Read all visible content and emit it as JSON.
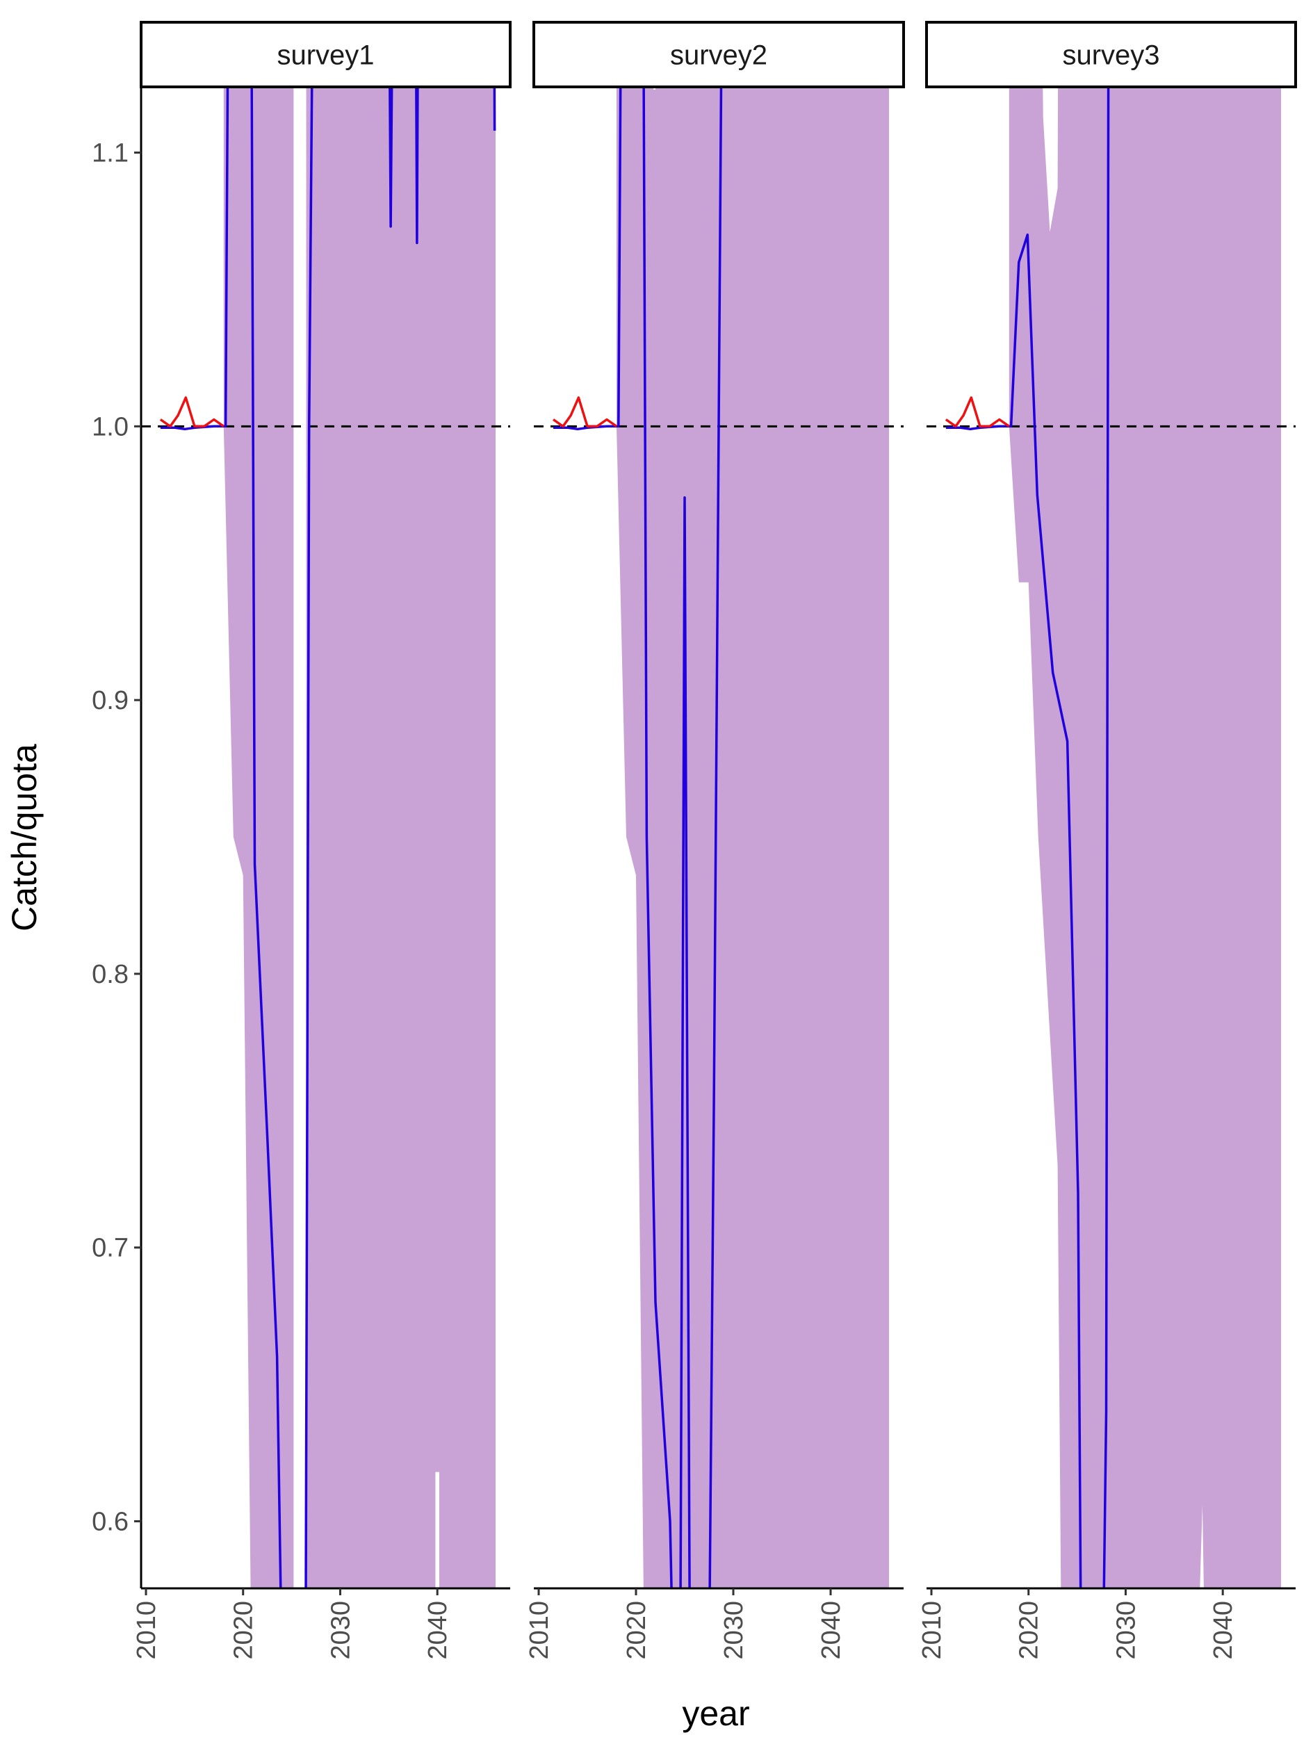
{
  "chart_data": {
    "type": "line",
    "ylabel": "Catch/quota",
    "xlabel": "year",
    "xlim": [
      2009.5,
      2047.5
    ],
    "ylim": [
      0.5755,
      1.1235
    ],
    "x_ticks": [
      2010,
      2020,
      2030,
      2040
    ],
    "y_ticks": [
      0.6,
      0.7,
      0.8,
      0.9,
      1.0,
      1.1
    ],
    "y_tick_labels": [
      "0.6",
      "0.7",
      "0.8",
      "0.9",
      "1.0",
      "1.1"
    ],
    "reference_line": {
      "y": 1.0,
      "style": "dashed",
      "color": "#000000"
    },
    "colors": {
      "ribbon": "#C9A2D6",
      "median": "#1F00DD",
      "observed": "#EE1111"
    },
    "panels": [
      {
        "label": "survey1",
        "ribbon": {
          "upper": [
            [
              2018.0,
              1.3
            ],
            [
              2046.0,
              1.3
            ]
          ],
          "gaps": [
            [
              2025.2,
              2026.5
            ]
          ],
          "lower": [
            [
              2018.0,
              1.0
            ],
            [
              2019.0,
              0.85
            ],
            [
              2020.0,
              0.836
            ],
            [
              2021.0,
              0.5
            ],
            [
              2039.8,
              0.5
            ],
            [
              2039.8,
              0.618
            ],
            [
              2040.2,
              0.618
            ],
            [
              2040.2,
              0.5
            ],
            [
              2046.0,
              0.5
            ]
          ]
        },
        "median": [
          [
            2011.5,
            0.9995
          ],
          [
            2013.0,
            0.9995
          ],
          [
            2014.0,
            0.999
          ],
          [
            2015.0,
            0.9995
          ],
          [
            2017.0,
            1.0
          ],
          [
            2018.2,
            1.0
          ],
          [
            2018.7,
            1.3
          ],
          [
            2020.7,
            1.3
          ],
          [
            2021.2,
            0.84
          ],
          [
            2022.5,
            0.74
          ],
          [
            2023.5,
            0.66
          ],
          [
            2024.2,
            0.5
          ],
          [
            2026.4,
            0.5
          ],
          [
            2026.8,
            1.0
          ],
          [
            2027.5,
            1.3
          ],
          [
            2034.8,
            1.3
          ],
          [
            2035.2,
            1.073
          ],
          [
            2035.7,
            1.3
          ],
          [
            2037.6,
            1.3
          ],
          [
            2037.9,
            1.067
          ],
          [
            2038.2,
            1.3
          ],
          [
            2045.7,
            1.3
          ],
          [
            2045.9,
            1.108
          ]
        ],
        "observed": [
          [
            2011.5,
            1.0025
          ],
          [
            2012.5,
            1.0
          ],
          [
            2013.3,
            1.004
          ],
          [
            2014.1,
            1.0105
          ],
          [
            2015.0,
            1.0
          ],
          [
            2016.0,
            1.0
          ],
          [
            2017.0,
            1.0025
          ],
          [
            2018.0,
            1.0
          ]
        ]
      },
      {
        "label": "survey2",
        "ribbon": {
          "upper": [
            [
              2018.0,
              1.3
            ],
            [
              2021.5,
              1.3
            ],
            [
              2021.8,
              1.123
            ],
            [
              2022.0,
              1.123
            ],
            [
              2022.1,
              1.3
            ],
            [
              2046.0,
              1.3
            ]
          ],
          "gaps": [],
          "lower": [
            [
              2018.0,
              1.0
            ],
            [
              2019.0,
              0.85
            ],
            [
              2020.0,
              0.836
            ],
            [
              2021.0,
              0.5
            ],
            [
              2046.0,
              0.5
            ]
          ]
        },
        "median": [
          [
            2011.5,
            0.9995
          ],
          [
            2013.0,
            0.9995
          ],
          [
            2014.0,
            0.999
          ],
          [
            2015.0,
            0.9995
          ],
          [
            2017.0,
            1.0
          ],
          [
            2018.2,
            1.0
          ],
          [
            2018.7,
            1.3
          ],
          [
            2020.6,
            1.3
          ],
          [
            2021.1,
            0.85
          ],
          [
            2022.0,
            0.68
          ],
          [
            2023.5,
            0.6
          ],
          [
            2024.1,
            0.5
          ],
          [
            2024.5,
            0.5
          ],
          [
            2025.0,
            0.974
          ],
          [
            2025.6,
            0.5
          ],
          [
            2027.4,
            0.5
          ],
          [
            2028.0,
            0.75
          ],
          [
            2028.5,
            1.0
          ],
          [
            2029.1,
            1.3
          ]
        ],
        "observed": [
          [
            2011.5,
            1.0025
          ],
          [
            2012.5,
            1.0
          ],
          [
            2013.3,
            1.004
          ],
          [
            2014.1,
            1.0105
          ],
          [
            2015.0,
            1.0
          ],
          [
            2016.0,
            1.0
          ],
          [
            2017.0,
            1.0025
          ],
          [
            2018.0,
            1.0
          ]
        ]
      },
      {
        "label": "survey3",
        "ribbon": {
          "upper": [
            [
              2018.0,
              1.3
            ],
            [
              2021.0,
              1.3
            ],
            [
              2021.5,
              1.113
            ],
            [
              2022.2,
              1.071
            ],
            [
              2023.0,
              1.087
            ],
            [
              2023.2,
              1.3
            ],
            [
              2046.0,
              1.3
            ]
          ],
          "gaps": [],
          "lower": [
            [
              2018.0,
              1.0
            ],
            [
              2019.0,
              0.943
            ],
            [
              2020.0,
              0.943
            ],
            [
              2021.0,
              0.85
            ],
            [
              2023.0,
              0.73
            ],
            [
              2023.5,
              0.5
            ],
            [
              2037.0,
              0.5
            ],
            [
              2037.9,
              0.606
            ],
            [
              2038.4,
              0.5
            ],
            [
              2046.0,
              0.5
            ]
          ]
        },
        "median": [
          [
            2011.5,
            0.9995
          ],
          [
            2013.0,
            0.9995
          ],
          [
            2014.0,
            0.999
          ],
          [
            2015.0,
            0.9995
          ],
          [
            2017.0,
            1.0
          ],
          [
            2018.2,
            1.0
          ],
          [
            2019.0,
            1.06
          ],
          [
            2019.9,
            1.07
          ],
          [
            2020.9,
            0.975
          ],
          [
            2022.5,
            0.91
          ],
          [
            2024.0,
            0.885
          ],
          [
            2025.1,
            0.72
          ],
          [
            2025.5,
            0.5
          ],
          [
            2027.5,
            0.5
          ],
          [
            2028.0,
            0.64
          ],
          [
            2028.3,
            1.3
          ]
        ],
        "observed": [
          [
            2011.5,
            1.0025
          ],
          [
            2012.5,
            1.0
          ],
          [
            2013.3,
            1.004
          ],
          [
            2014.1,
            1.0105
          ],
          [
            2015.0,
            1.0
          ],
          [
            2016.0,
            1.0
          ],
          [
            2017.0,
            1.0025
          ],
          [
            2018.0,
            1.0
          ]
        ]
      }
    ]
  }
}
